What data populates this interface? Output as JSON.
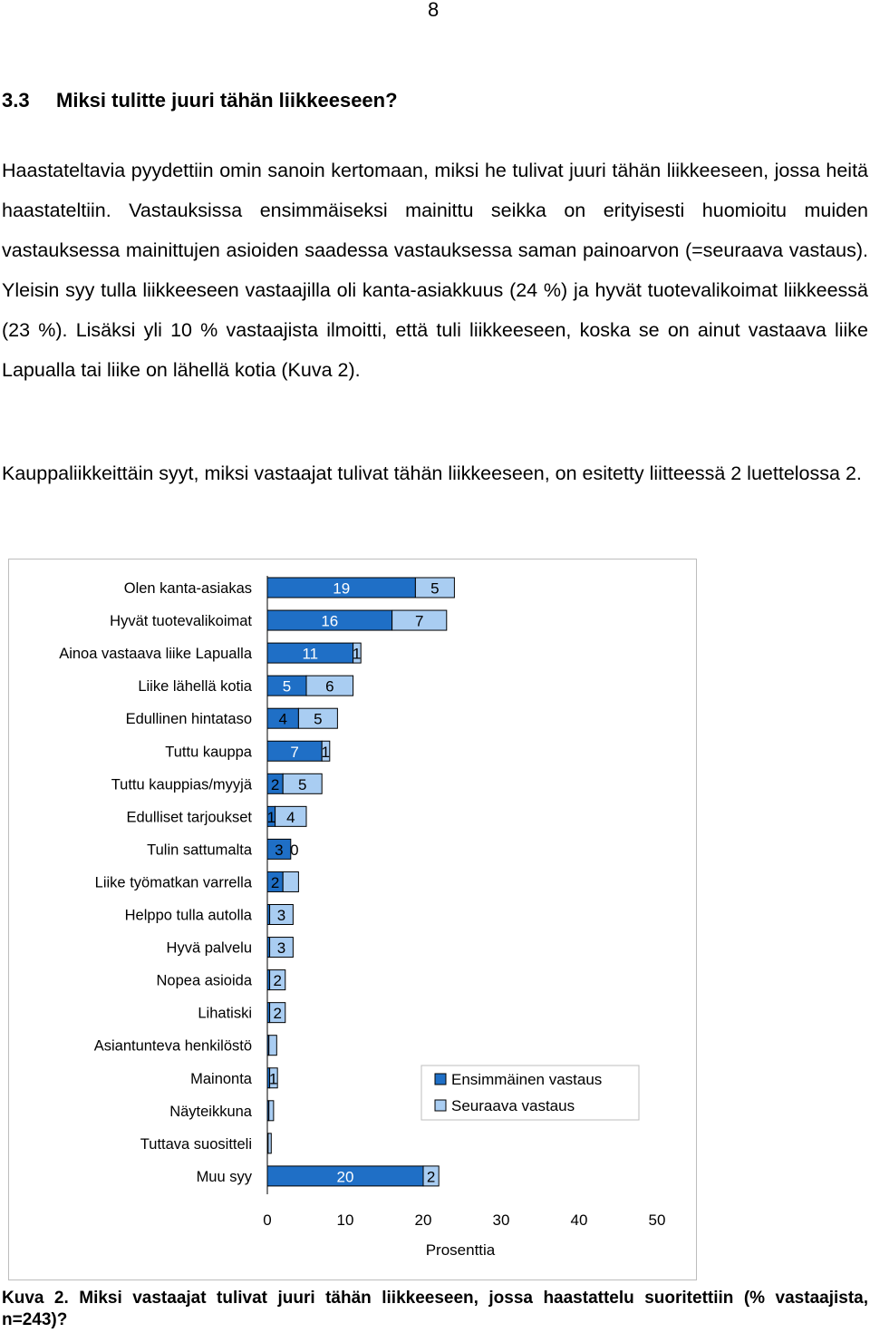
{
  "page_number": "8",
  "section": {
    "number": "3.3",
    "title": "Miksi tulitte juuri tähän liikkeeseen?"
  },
  "paragraphs": [
    "Haastateltavia pyydettiin omin sanoin kertomaan, miksi he tulivat juuri tähän liikkeeseen, jossa heitä haastateltiin. Vastauksissa ensimmäiseksi mainittu seikka on erityisesti huomioitu muiden vastauksessa mainittujen asioiden saadessa vastauksessa saman painoarvon (=seuraava vastaus). Yleisin syy tulla liikkeeseen vastaajilla oli kanta-asiakkuus (24 %) ja hyvät tuotevalikoimat liikkeessä (23 %). Lisäksi yli 10 % vastaajista ilmoitti, että tuli liikkeeseen, koska se on ainut vastaava liike Lapualla tai liike on lähellä kotia (Kuva 2).",
    "Kauppaliikkeittäin syyt, miksi vastaajat tulivat tähän liikkeeseen, on esitetty liitteessä 2 luettelossa 2."
  ],
  "caption": "Kuva 2. Miksi vastaajat tulivat juuri tähän liikkeeseen, jossa haastattelu suoritettiin (% vastaajista, n=243)?",
  "colors": {
    "first": "#1f6fc6",
    "next": "#a9cdf2",
    "border": "#000000",
    "frame": "#bdbdbd"
  },
  "chart_data": {
    "type": "bar",
    "orientation": "horizontal",
    "stacked": true,
    "categories": [
      "Olen kanta-asiakas",
      "Hyvät tuotevalikoimat",
      "Ainoa vastaava liike Lapualla",
      "Liike lähellä kotia",
      "Edullinen hintataso",
      "Tuttu kauppa",
      "Tuttu kauppias/myyjä",
      "Edulliset tarjoukset",
      "Tulin sattumalta",
      "Liike työmatkan varrella",
      "Helppo tulla autolla",
      "Hyvä palvelu",
      "Nopea asioida",
      "Lihatiski",
      "Asiantunteva henkilöstö",
      "Mainonta",
      "Näyteikkuna",
      "Tuttava suositteli",
      "Muu syy"
    ],
    "series": [
      {
        "name": "Ensimmäinen vastaus",
        "values": [
          19,
          16,
          11,
          5,
          4,
          7,
          2,
          1,
          3,
          2,
          0.3,
          0.3,
          0.3,
          0.3,
          0.2,
          0.3,
          0.2,
          0.1,
          20
        ]
      },
      {
        "name": "Seuraava vastaus",
        "values": [
          5,
          7,
          1,
          6,
          5,
          1,
          5,
          4,
          0,
          2,
          3,
          3,
          2,
          2,
          1,
          1,
          0.6,
          0.4,
          2
        ]
      }
    ],
    "labels_first": [
      "19",
      "16",
      "11",
      "5",
      "4",
      "7",
      "2",
      "1",
      "3",
      "2",
      "",
      "",
      "",
      "",
      "",
      "",
      "",
      "",
      "20"
    ],
    "labels_next": [
      "5",
      "7",
      "1",
      "6",
      "5",
      "1",
      "5",
      "4",
      "0",
      "",
      "3",
      "3",
      "2",
      "2",
      "",
      "1",
      "",
      "",
      "2"
    ],
    "xlim": [
      0,
      50
    ],
    "xticks": [
      "0",
      "10",
      "20",
      "30",
      "40",
      "50"
    ],
    "xlabel": "Prosenttia",
    "legend_position": "bottom-right",
    "grid": false
  }
}
